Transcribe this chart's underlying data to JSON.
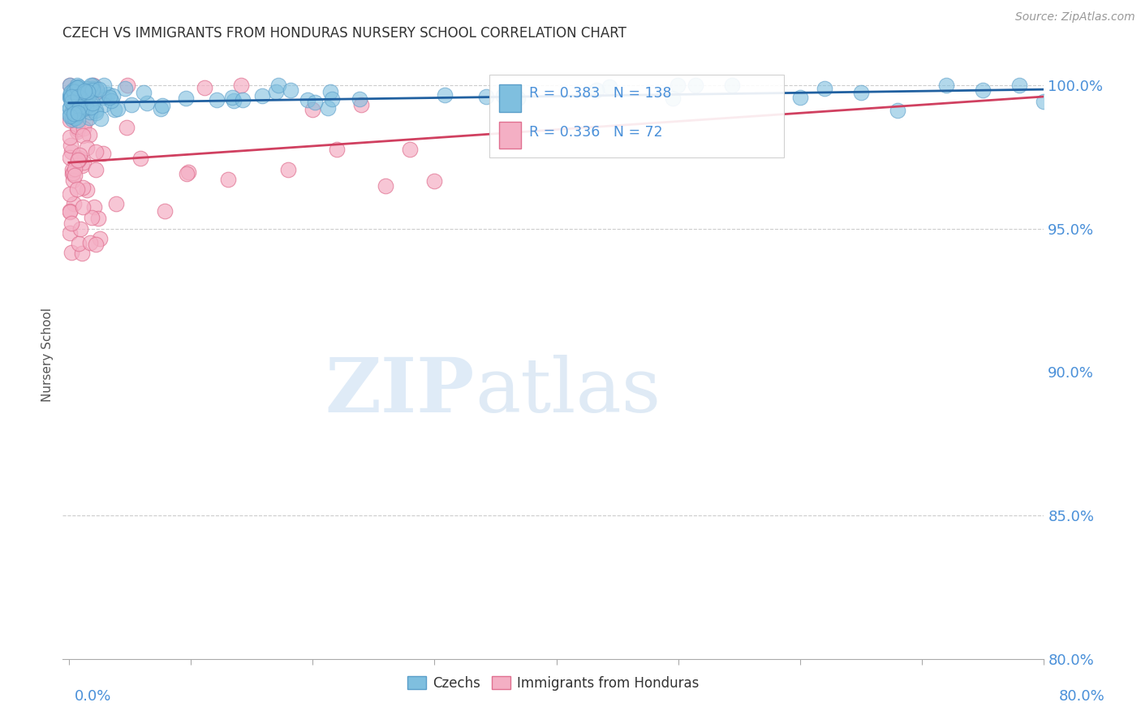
{
  "title": "CZECH VS IMMIGRANTS FROM HONDURAS NURSERY SCHOOL CORRELATION CHART",
  "source": "Source: ZipAtlas.com",
  "ylabel": "Nursery School",
  "legend_labels": [
    "Czechs",
    "Immigrants from Honduras"
  ],
  "blue_color": "#7fbfdf",
  "blue_edge_color": "#5a9ec9",
  "blue_line_color": "#2060a0",
  "pink_color": "#f4afc4",
  "pink_edge_color": "#e07090",
  "pink_line_color": "#d04060",
  "R_blue": 0.383,
  "N_blue": 138,
  "R_pink": 0.336,
  "N_pink": 72,
  "watermark_zip": "ZIP",
  "watermark_atlas": "atlas",
  "bg_color": "#ffffff",
  "title_color": "#333333",
  "axis_label_color": "#4a90d9",
  "grid_color": "#cccccc",
  "grid_style": "--"
}
